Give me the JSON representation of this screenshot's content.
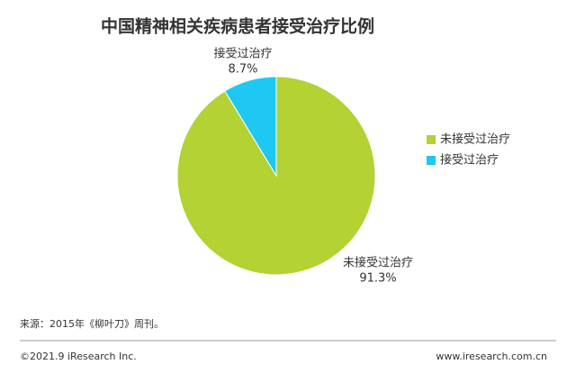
{
  "chart_data": {
    "type": "pie",
    "title": "中国精神相关疾病患者接受治疗比例",
    "categories": [
      "未接受过治疗",
      "接受过治疗"
    ],
    "values": [
      91.3,
      8.7
    ],
    "value_labels": [
      "91.3%",
      "8.7%"
    ],
    "colors": [
      "#b3d234",
      "#1ec8f2"
    ],
    "legend": "right",
    "source": "来源：2015年《柳叶刀》周刊。"
  },
  "footer": {
    "copyright": "©2021.9 iResearch Inc.",
    "website": "www.iresearch.com.cn"
  }
}
